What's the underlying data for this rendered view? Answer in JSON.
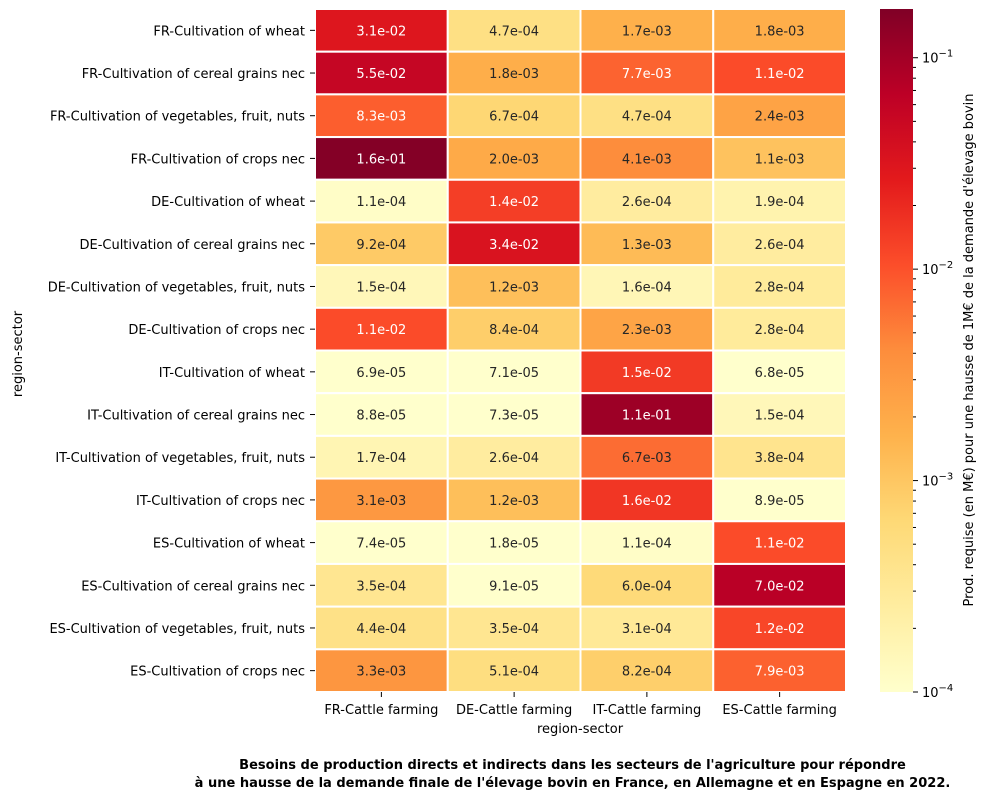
{
  "chart_data": {
    "type": "heatmap",
    "xlabel": "region-sector",
    "ylabel": "region-sector",
    "x_categories": [
      "FR-Cattle farming",
      "DE-Cattle farming",
      "IT-Cattle farming",
      "ES-Cattle farming"
    ],
    "y_categories": [
      "FR-Cultivation of wheat",
      "FR-Cultivation of cereal grains nec",
      "FR-Cultivation of vegetables, fruit, nuts",
      "FR-Cultivation of crops nec",
      "DE-Cultivation of wheat",
      "DE-Cultivation of cereal grains nec",
      "DE-Cultivation of vegetables, fruit, nuts",
      "DE-Cultivation of crops nec",
      "IT-Cultivation of wheat",
      "IT-Cultivation of cereal grains nec",
      "IT-Cultivation of vegetables, fruit, nuts",
      "IT-Cultivation of crops nec",
      "ES-Cultivation of wheat",
      "ES-Cultivation of cereal grains nec",
      "ES-Cultivation of vegetables, fruit, nuts",
      "ES-Cultivation of crops nec"
    ],
    "cell_labels": [
      [
        "3.1e-02",
        "4.7e-04",
        "1.7e-03",
        "1.8e-03"
      ],
      [
        "5.5e-02",
        "1.8e-03",
        "7.7e-03",
        "1.1e-02"
      ],
      [
        "8.3e-03",
        "6.7e-04",
        "4.7e-04",
        "2.4e-03"
      ],
      [
        "1.6e-01",
        "2.0e-03",
        "4.1e-03",
        "1.1e-03"
      ],
      [
        "1.1e-04",
        "1.4e-02",
        "2.6e-04",
        "1.9e-04"
      ],
      [
        "9.2e-04",
        "3.4e-02",
        "1.3e-03",
        "2.6e-04"
      ],
      [
        "1.5e-04",
        "1.2e-03",
        "1.6e-04",
        "2.8e-04"
      ],
      [
        "1.1e-02",
        "8.4e-04",
        "2.3e-03",
        "2.8e-04"
      ],
      [
        "6.9e-05",
        "7.1e-05",
        "1.5e-02",
        "6.8e-05"
      ],
      [
        "8.8e-05",
        "7.3e-05",
        "1.1e-01",
        "1.5e-04"
      ],
      [
        "1.7e-04",
        "2.6e-04",
        "6.7e-03",
        "3.8e-04"
      ],
      [
        "3.1e-03",
        "1.2e-03",
        "1.6e-02",
        "8.9e-05"
      ],
      [
        "7.4e-05",
        "1.8e-05",
        "1.1e-04",
        "1.1e-02"
      ],
      [
        "3.5e-04",
        "9.1e-05",
        "6.0e-04",
        "7.0e-02"
      ],
      [
        "4.4e-04",
        "3.5e-04",
        "3.1e-04",
        "1.2e-02"
      ],
      [
        "3.3e-03",
        "5.1e-04",
        "8.2e-04",
        "7.9e-03"
      ]
    ],
    "colorbar": {
      "label": "Prod. requise (en M€) pour une hausse de 1M€ de la demande d'élevage bovin",
      "scale": "log",
      "range": [
        0.0001,
        0.17
      ],
      "tick_values": [
        0.0001,
        0.001,
        0.01,
        0.1
      ],
      "tick_base": "10",
      "tick_exponents": [
        "−4",
        "−3",
        "−2",
        "−1"
      ],
      "colormap": [
        "#ffffcc",
        "#ffeda0",
        "#fed976",
        "#feb24c",
        "#fd8d3c",
        "#fc4e2a",
        "#e31a1c",
        "#bd0026",
        "#800026"
      ]
    },
    "caption_lines": [
      "Besoins de production directs et indirects dans les secteurs de l'agriculture pour répondre",
      "à une hausse de la demande finale de l'élevage bovin en France, en Allemagne et en Espagne en 2022."
    ]
  }
}
